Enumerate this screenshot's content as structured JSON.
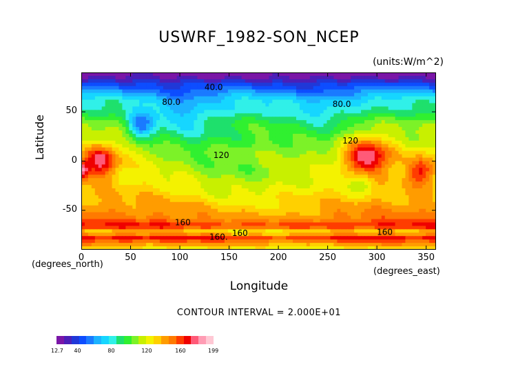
{
  "title": "USWRF_1982-SON_NCEP",
  "units": "(units:W/m^2)",
  "contour_interval": "CONTOUR INTERVAL = 2.000E+01",
  "chart_data": {
    "type": "heatmap",
    "title": "USWRF_1982-SON_NCEP",
    "xlabel": "Longitude",
    "ylabel": "Latitude",
    "x_units": "(degrees_north)",
    "x_units_east": "(degrees_east)",
    "xlim": [
      0,
      360
    ],
    "ylim": [
      -90,
      90
    ],
    "x_ticks": [
      0,
      50,
      100,
      150,
      200,
      250,
      300,
      350
    ],
    "y_ticks": [
      -50,
      0,
      50
    ],
    "contour_labels": [
      {
        "text": "40.0",
        "lon": 125,
        "lat": 72
      },
      {
        "text": "80.0",
        "lon": 82,
        "lat": 57
      },
      {
        "text": "80.0",
        "lon": 255,
        "lat": 55
      },
      {
        "text": "120",
        "lon": 265,
        "lat": 18
      },
      {
        "text": "120",
        "lon": 134,
        "lat": 3
      },
      {
        "text": "160",
        "lon": 95,
        "lat": -65
      },
      {
        "text": "160",
        "lon": 153,
        "lat": -76
      },
      {
        "text": "160.",
        "lon": 130,
        "lat": -80
      },
      {
        "text": "160",
        "lon": 300,
        "lat": -75
      }
    ],
    "colorbar": {
      "min": 12.7,
      "max": 199,
      "labels": [
        "12.7",
        "40",
        "80",
        "120",
        "160",
        "199"
      ],
      "colors": [
        "#7a16a7",
        "#4b1fb8",
        "#2038d8",
        "#0d4dff",
        "#1a7aff",
        "#1cb2ff",
        "#16d6ff",
        "#30f0e8",
        "#1ee06c",
        "#30f030",
        "#7cf228",
        "#c8f000",
        "#f4f200",
        "#ffd000",
        "#ff9c00",
        "#ff7a00",
        "#ff3c00",
        "#ef0000",
        "#ff5a78",
        "#ff9cb4",
        "#ffc8d4"
      ]
    }
  }
}
